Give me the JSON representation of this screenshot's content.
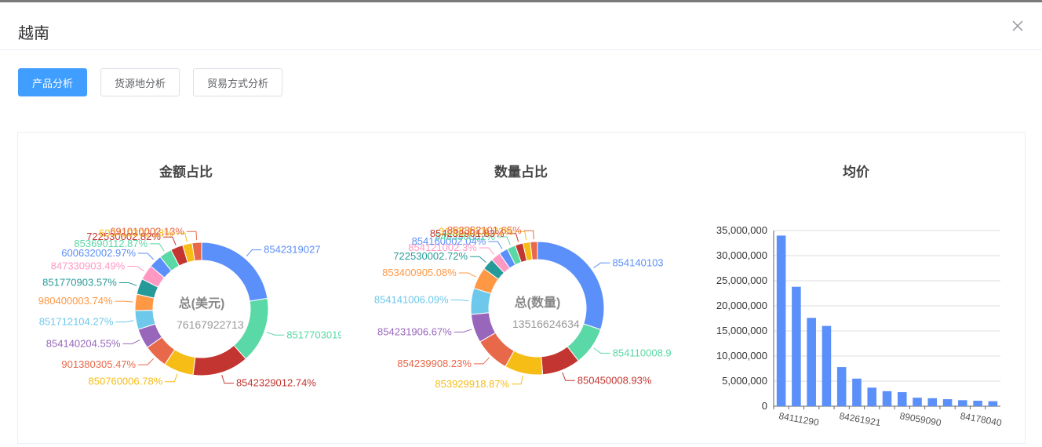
{
  "dialog": {
    "title": "越南"
  },
  "tabs": [
    {
      "label": "产品分析",
      "active": true
    },
    {
      "label": "货源地分析",
      "active": false
    },
    {
      "label": "贸易方式分析",
      "active": false
    }
  ],
  "colors": [
    "#5b8ff9",
    "#5ad8a6",
    "#c23531",
    "#f6bd16",
    "#e8684a",
    "#9867bc",
    "#6dc8ec",
    "#ff9845",
    "#269a99",
    "#ff99c3",
    "#5d7092",
    "#e8684a"
  ],
  "chart_data": [
    {
      "type": "pie",
      "title": "金额占比",
      "center_label": "总(美元)",
      "center_value": "76167922713",
      "slices": [
        {
          "label": "8542319027",
          "value": 21.0,
          "color": "#5b8ff9"
        },
        {
          "label": "8517703019",
          "value": 15.0,
          "color": "#5ad8a6"
        },
        {
          "label": "8542329012.74%",
          "value": 12.74,
          "color": "#c23531"
        },
        {
          "label": "850760006.78%",
          "value": 6.78,
          "color": "#f6bd16"
        },
        {
          "label": "901380305.47%",
          "value": 5.47,
          "color": "#e8684a"
        },
        {
          "label": "854140204.55%",
          "value": 4.55,
          "color": "#9867bc"
        },
        {
          "label": "851712104.27%",
          "value": 4.27,
          "color": "#6dc8ec"
        },
        {
          "label": "980400003.74%",
          "value": 3.74,
          "color": "#ff9845"
        },
        {
          "label": "851770903.57%",
          "value": 3.57,
          "color": "#269a99"
        },
        {
          "label": "847330903.49%",
          "value": 3.49,
          "color": "#ff99c3"
        },
        {
          "label": "600632002.97%",
          "value": 2.97,
          "color": "#5b8ff9"
        },
        {
          "label": "853690112.87%",
          "value": 2.87,
          "color": "#5ad8a6"
        },
        {
          "label": "722530002.82%",
          "value": 2.82,
          "color": "#c23531"
        },
        {
          "label": "600410302.18%",
          "value": 2.18,
          "color": "#f6bd16"
        },
        {
          "label": "691010002.13%",
          "value": 2.13,
          "color": "#e8684a"
        }
      ]
    },
    {
      "type": "pie",
      "title": "数量占比",
      "center_label": "总(数量)",
      "center_value": "13516624634",
      "slices": [
        {
          "label": "854140103",
          "value": 29.0,
          "color": "#5b8ff9"
        },
        {
          "label": "854110008.9",
          "value": 8.9,
          "color": "#5ad8a6"
        },
        {
          "label": "850450008.93%",
          "value": 8.93,
          "color": "#c23531"
        },
        {
          "label": "853929918.87%",
          "value": 8.87,
          "color": "#f6bd16"
        },
        {
          "label": "854239908.23%",
          "value": 8.23,
          "color": "#e8684a"
        },
        {
          "label": "854231906.67%",
          "value": 6.67,
          "color": "#9867bc"
        },
        {
          "label": "854141006.09%",
          "value": 6.09,
          "color": "#6dc8ec"
        },
        {
          "label": "853400905.08%",
          "value": 5.08,
          "color": "#ff9845"
        },
        {
          "label": "722530002.72%",
          "value": 2.72,
          "color": "#269a99"
        },
        {
          "label": "854121002.3%",
          "value": 2.3,
          "color": "#ff99c3"
        },
        {
          "label": "854160002.04%",
          "value": 2.04,
          "color": "#5b8ff9"
        },
        {
          "label": "848330002%",
          "value": 2.0,
          "color": "#5ad8a6"
        },
        {
          "label": "854232901.83%",
          "value": 1.83,
          "color": "#c23531"
        },
        {
          "label": "310221001.72%",
          "value": 1.72,
          "color": "#f6bd16"
        },
        {
          "label": "852352101.65%",
          "value": 1.65,
          "color": "#e8684a"
        }
      ]
    },
    {
      "type": "bar",
      "title": "均价",
      "color": "#5b8ff9",
      "categories": [
        "84111290",
        "",
        "",
        "",
        "84261921",
        "",
        "",
        "",
        "89059090",
        "",
        "",
        "",
        "84178040",
        "",
        ""
      ],
      "values": [
        34000000,
        23800000,
        17600000,
        16000000,
        7800000,
        5500000,
        3700000,
        3000000,
        2800000,
        1700000,
        1600000,
        1400000,
        1200000,
        1100000,
        1000000
      ],
      "ylim": [
        0,
        35000000
      ],
      "yticks": [
        0,
        5000000,
        10000000,
        15000000,
        20000000,
        25000000,
        30000000,
        35000000
      ],
      "ytick_labels": [
        "0",
        "5,000,000",
        "10,000,000",
        "15,000,000",
        "20,000,000",
        "25,000,000",
        "30,000,000",
        "35,000,000"
      ]
    }
  ]
}
